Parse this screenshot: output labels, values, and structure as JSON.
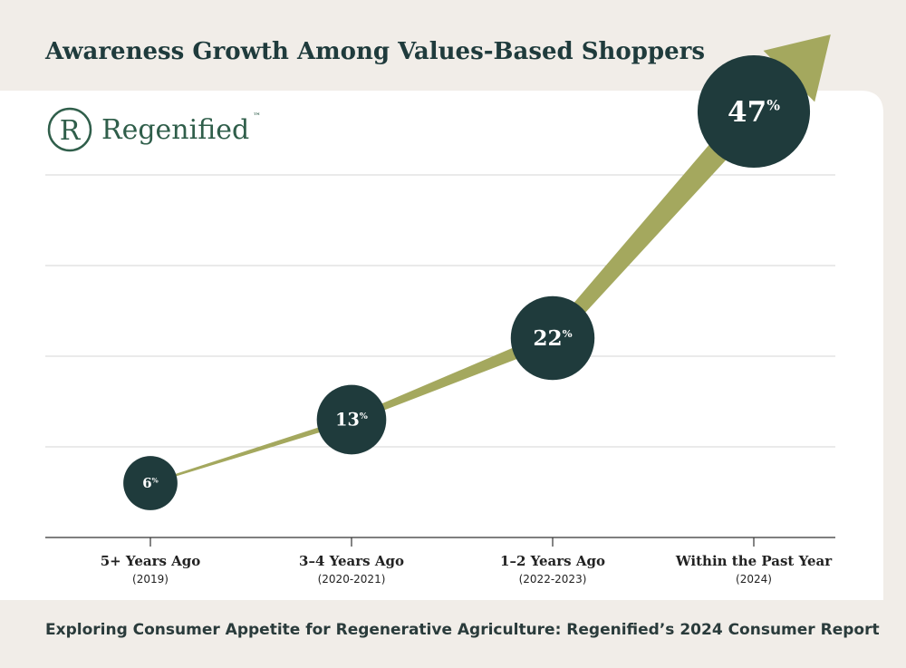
{
  "chart_data": {
    "type": "bubble-arrow",
    "title": "Awareness Growth Among Values-Based Shoppers",
    "logo_initial": "R",
    "brand": "Regenified",
    "brand_mark": "™",
    "categories": [
      "5+ Years Ago",
      "3–4 Years Ago",
      "1–2 Years Ago",
      "Within the Past Year"
    ],
    "x_sublabels": [
      "(2019)",
      "(2020-2021)",
      "(2022-2023)",
      "(2024)"
    ],
    "values": [
      6,
      13,
      22,
      47
    ],
    "value_labels": [
      "6%",
      "13%",
      "22%",
      "47%"
    ],
    "color": "#1f3b3c",
    "arrow_color": "#a4a85e",
    "ylim": [
      0,
      50
    ],
    "yticks": [
      10,
      20,
      30,
      40
    ],
    "grid": true,
    "caption": "Exploring Consumer Appetite for Regenerative Agriculture: Regenified’s 2024 Consumer Report"
  }
}
